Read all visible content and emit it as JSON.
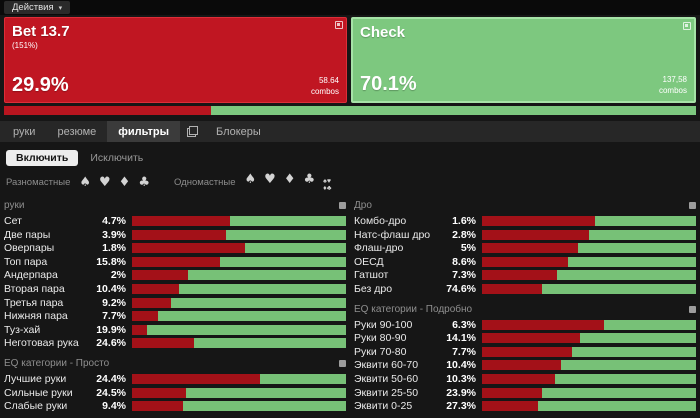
{
  "topbar": {
    "actions_label": "Действия",
    "caret": "▾"
  },
  "actions": [
    {
      "name": "Bet 13.7",
      "sub": "(151%)",
      "freq": "29.9%",
      "combos": "58.64",
      "combos_unit": "combos"
    },
    {
      "name": "Check",
      "freq": "70.1%",
      "combos": "137,58",
      "combos_unit": "combos"
    }
  ],
  "summary_bar": {
    "bet_pct": 29.9,
    "check_pct": 70.1
  },
  "tabs": [
    {
      "id": "hands",
      "label": "руки",
      "active": false
    },
    {
      "id": "summary",
      "label": "резюме",
      "active": false
    },
    {
      "id": "filters",
      "label": "фильтры",
      "active": true,
      "copy_icon_after": true
    },
    {
      "id": "blockers",
      "label": "Блокеры",
      "active": false
    }
  ],
  "filter_mode": {
    "include_label": "Включить",
    "exclude_label": "Исключить"
  },
  "suit_filters": {
    "offsuit_label": "Разномастные",
    "suited_label": "Одномастные",
    "suits": [
      "♠",
      "♥",
      "♦",
      "♣"
    ]
  },
  "columns": [
    {
      "sections": [
        {
          "title": "руки",
          "rows": [
            {
              "label": "Сет",
              "pct": "4.7%",
              "red": 46
            },
            {
              "label": "Две пары",
              "pct": "3.9%",
              "red": 44
            },
            {
              "label": "Оверпары",
              "pct": "1.8%",
              "red": 53
            },
            {
              "label": "Топ пара",
              "pct": "15.8%",
              "red": 41
            },
            {
              "label": "Андерпара",
              "pct": "2%",
              "red": 26
            },
            {
              "label": "Вторая пара",
              "pct": "10.4%",
              "red": 22
            },
            {
              "label": "Третья пара",
              "pct": "9.2%",
              "red": 18
            },
            {
              "label": "Нижняя пара",
              "pct": "7.7%",
              "red": 12
            },
            {
              "label": "Туз-хай",
              "pct": "19.9%",
              "red": 7
            },
            {
              "label": "Неготовая рука",
              "pct": "24.6%",
              "red": 29
            }
          ]
        },
        {
          "title": "EQ категории - Просто",
          "rows": [
            {
              "label": "Лучшие руки",
              "pct": "24.4%",
              "red": 60
            },
            {
              "label": "Сильные руки",
              "pct": "24.5%",
              "red": 25
            },
            {
              "label": "Слабые руки",
              "pct": "9.4%",
              "red": 24
            }
          ]
        }
      ]
    },
    {
      "sections": [
        {
          "title": "Дро",
          "rows": [
            {
              "label": "Комбо-дро",
              "pct": "1.6%",
              "red": 53
            },
            {
              "label": "Натс-флаш дро",
              "pct": "2.8%",
              "red": 50
            },
            {
              "label": "Флаш-дро",
              "pct": "5%",
              "red": 45
            },
            {
              "label": "ОЕСД",
              "pct": "8.6%",
              "red": 40
            },
            {
              "label": "Гатшот",
              "pct": "7.3%",
              "red": 35
            },
            {
              "label": "Без дро",
              "pct": "74.6%",
              "red": 28
            }
          ]
        },
        {
          "title": "EQ категории - Подробно",
          "rows": [
            {
              "label": "Руки 90-100",
              "pct": "6.3%",
              "red": 57
            },
            {
              "label": "Руки 80-90",
              "pct": "14.1%",
              "red": 46
            },
            {
              "label": "Руки 70-80",
              "pct": "7.7%",
              "red": 42
            },
            {
              "label": "Эквити 60-70",
              "pct": "10.4%",
              "red": 37
            },
            {
              "label": "Эквити 50-60",
              "pct": "10.3%",
              "red": 34
            },
            {
              "label": "Эквити 25-50",
              "pct": "23.9%",
              "red": 28
            },
            {
              "label": "Эквити 0-25",
              "pct": "27.3%",
              "red": 26
            }
          ]
        }
      ]
    }
  ],
  "colors": {
    "bet_red": "#c01622",
    "bet_red_border": "#dd2e38",
    "check_green": "#7dc87f",
    "check_green_border": "#a6e3a7",
    "bar_red": "#a31118",
    "bar_green": "#77c177",
    "summary_red": "#b8151f",
    "summary_green": "#7dc87f"
  }
}
